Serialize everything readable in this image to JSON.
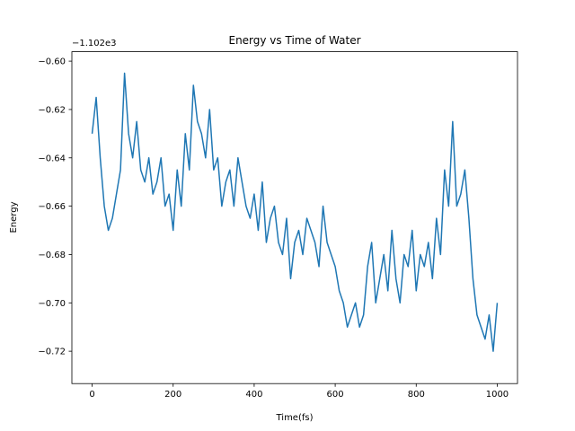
{
  "chart_data": {
    "type": "line",
    "title": "Energy vs Time of Water",
    "x_label": "Time(fs)",
    "y_label": "Energy",
    "y_offset": "−1.102e3",
    "x": [
      0,
      10,
      20,
      30,
      40,
      50,
      60,
      70,
      80,
      90,
      100,
      110,
      120,
      130,
      140,
      150,
      160,
      170,
      180,
      190,
      200,
      210,
      220,
      230,
      240,
      250,
      260,
      270,
      280,
      290,
      300,
      310,
      320,
      330,
      340,
      350,
      360,
      370,
      380,
      390,
      400,
      410,
      420,
      430,
      440,
      450,
      460,
      470,
      480,
      490,
      500,
      510,
      520,
      530,
      540,
      550,
      560,
      570,
      580,
      590,
      600,
      610,
      620,
      630,
      640,
      650,
      660,
      670,
      680,
      690,
      700,
      710,
      720,
      730,
      740,
      750,
      760,
      770,
      780,
      790,
      800,
      810,
      820,
      830,
      840,
      850,
      860,
      870,
      880,
      890,
      900,
      910,
      920,
      930,
      940,
      950,
      960,
      970,
      980,
      990,
      1000
    ],
    "series": [
      {
        "name": "Energy",
        "color": "#1f77b4",
        "values": [
          -0.63,
          -0.615,
          -0.64,
          -0.66,
          -0.67,
          -0.665,
          -0.655,
          -0.645,
          -0.605,
          -0.63,
          -0.64,
          -0.625,
          -0.645,
          -0.65,
          -0.64,
          -0.655,
          -0.65,
          -0.64,
          -0.66,
          -0.655,
          -0.67,
          -0.645,
          -0.66,
          -0.63,
          -0.645,
          -0.61,
          -0.625,
          -0.63,
          -0.64,
          -0.62,
          -0.645,
          -0.64,
          -0.66,
          -0.65,
          -0.645,
          -0.66,
          -0.64,
          -0.65,
          -0.66,
          -0.665,
          -0.655,
          -0.67,
          -0.65,
          -0.675,
          -0.665,
          -0.66,
          -0.675,
          -0.68,
          -0.665,
          -0.69,
          -0.675,
          -0.67,
          -0.68,
          -0.665,
          -0.67,
          -0.675,
          -0.685,
          -0.66,
          -0.675,
          -0.68,
          -0.685,
          -0.695,
          -0.7,
          -0.71,
          -0.705,
          -0.7,
          -0.71,
          -0.705,
          -0.685,
          -0.675,
          -0.7,
          -0.69,
          -0.68,
          -0.695,
          -0.67,
          -0.69,
          -0.7,
          -0.68,
          -0.685,
          -0.67,
          -0.695,
          -0.68,
          -0.685,
          -0.675,
          -0.69,
          -0.665,
          -0.68,
          -0.645,
          -0.66,
          -0.625,
          -0.66,
          -0.655,
          -0.645,
          -0.665,
          -0.69,
          -0.705,
          -0.71,
          -0.715,
          -0.705,
          -0.72,
          -0.7
        ]
      }
    ],
    "xlim": [
      -50,
      1050
    ],
    "xticks": [
      0,
      200,
      400,
      600,
      800,
      1000
    ],
    "ylim": [
      -0.7334,
      -0.5961
    ],
    "yticks": [
      {
        "value": -0.72,
        "label": "−0.72"
      },
      {
        "value": -0.7,
        "label": "−0.70"
      },
      {
        "value": -0.68,
        "label": "−0.68"
      },
      {
        "value": -0.66,
        "label": "−0.66"
      },
      {
        "value": -0.64,
        "label": "−0.64"
      },
      {
        "value": -0.62,
        "label": "−0.62"
      },
      {
        "value": -0.6,
        "label": "−0.60"
      }
    ]
  }
}
